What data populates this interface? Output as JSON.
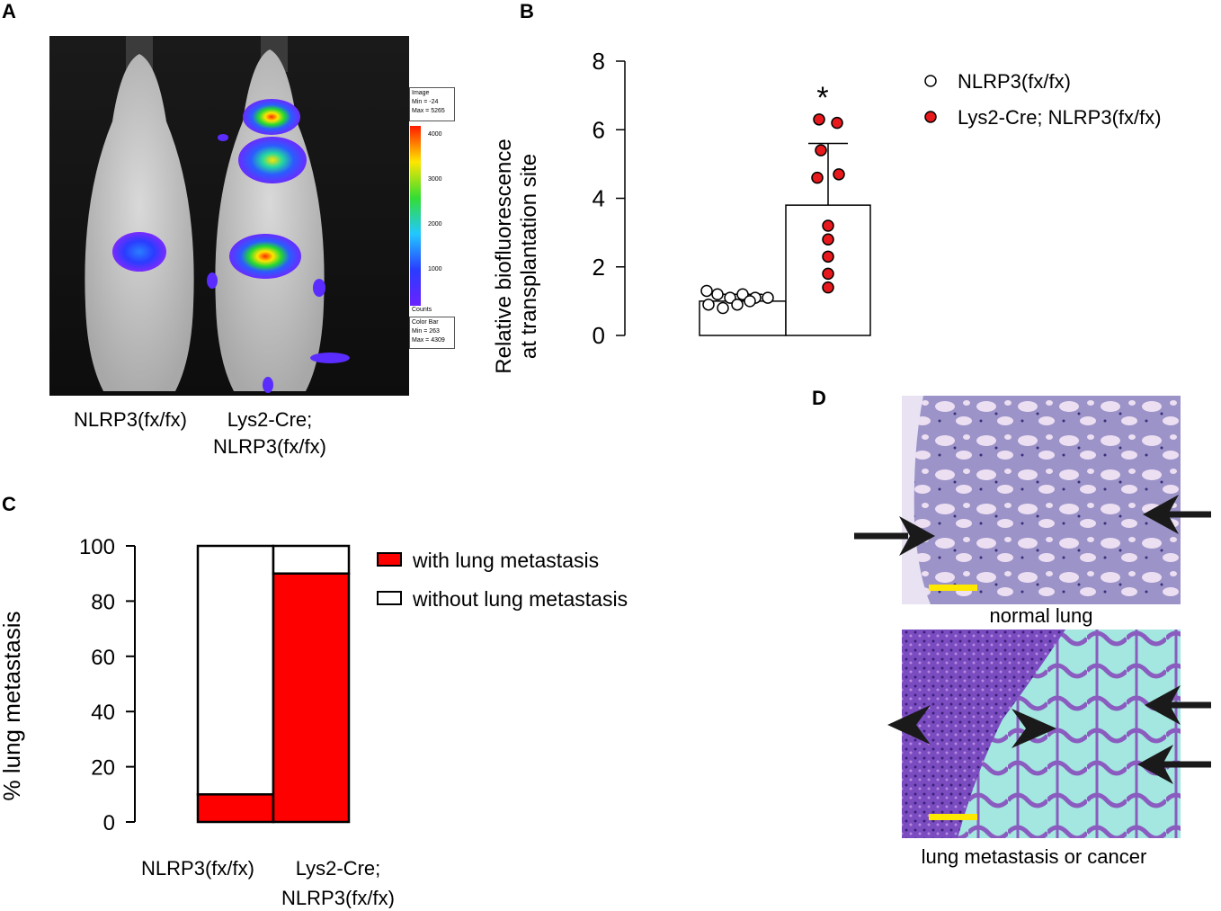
{
  "panels": {
    "A": "A",
    "B": "B",
    "C": "C",
    "D": "D"
  },
  "panel_a": {
    "labels": [
      "NLRP3(fx/fx)",
      "Lys2-Cre;",
      "NLRP3(fx/fx)"
    ],
    "colorbar": {
      "image_box": [
        "Image",
        "Min = -24",
        "Max = 5265"
      ],
      "ticks": [
        "4000",
        "3000",
        "2000",
        "1000"
      ],
      "unit": "Counts",
      "colorbar_box": [
        "Color Bar",
        "Min = 263",
        "Max = 4309"
      ]
    }
  },
  "panel_d": {
    "captions": [
      "normal lung",
      "lung metastasis or cancer"
    ]
  },
  "chart_data": [
    {
      "panel": "B",
      "type": "bar",
      "ylabel_lines": [
        "Relative biofluorescence",
        "at transplantation site"
      ],
      "ylim": [
        0,
        8
      ],
      "yticks": [
        0,
        2,
        4,
        6,
        8
      ],
      "significance": "*",
      "legend_position": "top-right",
      "series": [
        {
          "name": "NLRP3(fx/fx)",
          "color": "#ffffff",
          "mean": 1.0,
          "sd": 0.2,
          "points": [
            1.3,
            1.2,
            1.1,
            1.2,
            1.1,
            1.1,
            0.9,
            0.8,
            0.9,
            1.0
          ]
        },
        {
          "name": "Lys2-Cre; NLRP3(fx/fx)",
          "color": "#e8191c",
          "mean": 3.8,
          "sd": 1.8,
          "points": [
            6.3,
            6.2,
            5.4,
            4.7,
            4.6,
            3.2,
            2.8,
            2.3,
            1.8,
            1.4
          ]
        }
      ]
    },
    {
      "panel": "C",
      "type": "bar",
      "stacked": true,
      "categories": [
        "NLRP3(fx/fx)",
        "Lys2-Cre; NLRP3(fx/fx)"
      ],
      "category_lines": [
        [
          "NLRP3(fx/fx)"
        ],
        [
          "Lys2-Cre;",
          "NLRP3(fx/fx)"
        ]
      ],
      "ylabel": "% lung metastasis",
      "ylim": [
        0,
        100
      ],
      "yticks": [
        0,
        20,
        40,
        60,
        80,
        100
      ],
      "legend_position": "top-right",
      "series": [
        {
          "name": "with lung metastasis",
          "color": "#ff0000",
          "values": [
            10,
            90
          ]
        },
        {
          "name": "without lung metastasis",
          "color": "#ffffff",
          "values": [
            90,
            10
          ]
        }
      ]
    }
  ]
}
